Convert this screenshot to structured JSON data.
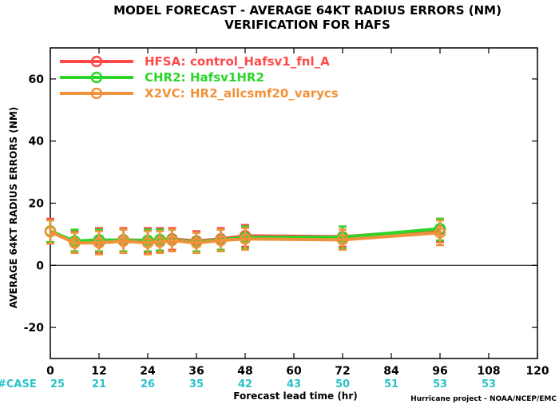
{
  "title_line1": "MODEL FORECAST - AVERAGE 64KT RADIUS ERRORS (NM)",
  "title_line2": "VERIFICATION FOR HAFS",
  "credit": "Hurricane project - NOAA/NCEP/EMC",
  "case_label": "#CASE",
  "colors": {
    "HFSA": "#ff4a4a",
    "CHR2": "#2ad62a",
    "X2VC": "#f0923a",
    "case": "#29c3c9",
    "zero_line": "#000000"
  },
  "chart_data": {
    "type": "line",
    "xlabel": "Forecast lead time (hr)",
    "ylabel": "AVERAGE 64KT RADIUS ERRORS (NM)",
    "xlim": [
      0,
      120
    ],
    "ylim": [
      -30,
      70
    ],
    "x_ticks": [
      0,
      12,
      24,
      36,
      48,
      60,
      72,
      84,
      96,
      108,
      120
    ],
    "y_ticks": [
      -20,
      0,
      20,
      40,
      60
    ],
    "grid": false,
    "legend_position": "top-left",
    "case_x": [
      0,
      12,
      24,
      36,
      48,
      60,
      72,
      84,
      96,
      108
    ],
    "case_counts": [
      "25",
      "21",
      "26",
      "35",
      "42",
      "43",
      "50",
      "51",
      "53",
      "53"
    ],
    "series": [
      {
        "key": "HFSA",
        "name": "HFSA:",
        "label": "control_Hafsv1_fnl_A",
        "x": [
          0,
          6,
          12,
          18,
          24,
          27,
          30,
          36,
          42,
          48,
          72,
          96
        ],
        "y": [
          11.0,
          7.5,
          8.0,
          8.2,
          8.0,
          8.2,
          8.5,
          7.8,
          8.5,
          9.5,
          9.2,
          11.5
        ],
        "err_low": [
          7.0,
          4.5,
          4.0,
          4.5,
          4.0,
          4.5,
          5.0,
          4.5,
          5.0,
          6.0,
          6.0,
          7.5
        ],
        "err_high": [
          15.0,
          11.0,
          12.0,
          12.0,
          12.0,
          12.0,
          12.0,
          11.0,
          12.0,
          13.0,
          12.5,
          15.0
        ]
      },
      {
        "key": "CHR2",
        "name": "CHR2:",
        "label": "Hafsv1HR2",
        "x": [
          0,
          6,
          12,
          18,
          24,
          27,
          30,
          36,
          42,
          48,
          72,
          96
        ],
        "y": [
          11.0,
          7.8,
          8.2,
          8.0,
          8.0,
          8.3,
          8.2,
          7.5,
          8.2,
          9.0,
          9.0,
          11.8
        ],
        "err_low": [
          7.5,
          4.5,
          4.5,
          4.5,
          4.5,
          4.8,
          4.5,
          4.5,
          5.0,
          5.5,
          5.5,
          8.0
        ],
        "err_high": [
          14.5,
          11.5,
          11.5,
          11.5,
          11.5,
          11.5,
          11.5,
          10.5,
          11.5,
          12.5,
          12.5,
          15.0
        ]
      },
      {
        "key": "X2VC",
        "name": "X2VC:",
        "label": "HR2_allcsmf20_varycs",
        "x": [
          0,
          6,
          12,
          18,
          24,
          27,
          30,
          36,
          42,
          48,
          72,
          96
        ],
        "y": [
          10.8,
          7.2,
          7.2,
          7.8,
          7.2,
          7.5,
          8.0,
          7.2,
          8.0,
          8.5,
          8.2,
          10.5
        ],
        "err_low": [
          7.0,
          4.0,
          3.5,
          4.0,
          3.5,
          4.0,
          4.5,
          4.0,
          4.5,
          5.0,
          5.0,
          6.5
        ],
        "err_high": [
          14.5,
          10.5,
          11.0,
          11.5,
          11.0,
          11.0,
          11.5,
          10.5,
          11.5,
          12.0,
          11.5,
          14.5
        ]
      }
    ]
  }
}
